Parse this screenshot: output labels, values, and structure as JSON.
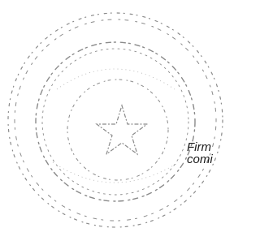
{
  "stamp": {
    "lines": [
      "Firm",
      "comi"
    ]
  }
}
